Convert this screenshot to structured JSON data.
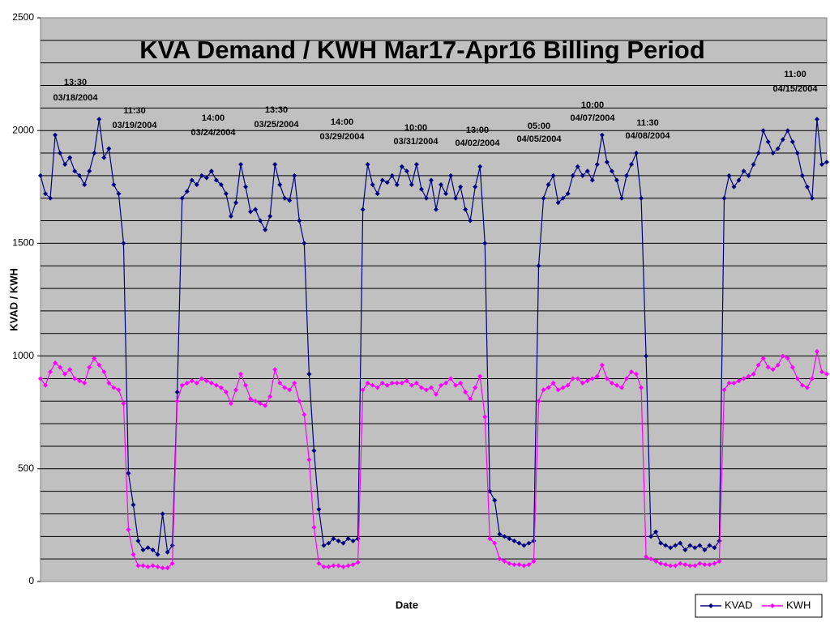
{
  "chart_data": {
    "type": "line",
    "title": "KVA Demand / KWH   Mar17-Apr16 Billing Period",
    "x_label": "Date",
    "y_label": "KVAD / KWH",
    "ylim": [
      0,
      2500
    ],
    "yticks": [
      0,
      500,
      1000,
      1500,
      2000,
      2500
    ],
    "ygrid": [
      100,
      200,
      300,
      400,
      500,
      600,
      700,
      800,
      900,
      1000,
      1100,
      1200,
      1300,
      1400,
      1500,
      1600,
      1700,
      1800,
      1900,
      2000,
      2100,
      2200,
      2300,
      2400
    ],
    "grid": true,
    "legend": "bottom-right",
    "annotations": [
      {
        "time": "13:30",
        "date": "03/18/2004"
      },
      {
        "time": "11:30",
        "date": "03/19/2004"
      },
      {
        "time": "14:00",
        "date": "03/24/2004"
      },
      {
        "time": "13:30",
        "date": "03/25/2004"
      },
      {
        "time": "14:00",
        "date": "03/29/2004"
      },
      {
        "time": "10:00",
        "date": "03/31/2004"
      },
      {
        "time": "13:00",
        "date": "04/02/2004"
      },
      {
        "time": "05:00",
        "date": "04/05/2004"
      },
      {
        "time": "10:00",
        "date": "04/07/2004"
      },
      {
        "time": "11:30",
        "date": "04/08/2004"
      },
      {
        "time": "11:00",
        "date": "04/15/2004"
      }
    ],
    "series": [
      {
        "name": "KVAD",
        "color": "#000080",
        "values": [
          1800,
          1720,
          1700,
          1980,
          1900,
          1850,
          1880,
          1820,
          1800,
          1760,
          1820,
          1900,
          2050,
          1880,
          1920,
          1760,
          1720,
          1500,
          480,
          340,
          180,
          140,
          150,
          140,
          120,
          300,
          130,
          160,
          840,
          1700,
          1730,
          1780,
          1760,
          1800,
          1790,
          1820,
          1780,
          1760,
          1720,
          1620,
          1680,
          1850,
          1750,
          1640,
          1650,
          1600,
          1560,
          1620,
          1850,
          1760,
          1700,
          1690,
          1800,
          1600,
          1500,
          920,
          580,
          320,
          160,
          170,
          190,
          180,
          170,
          190,
          180,
          190,
          1650,
          1850,
          1760,
          1720,
          1780,
          1770,
          1800,
          1760,
          1840,
          1820,
          1760,
          1850,
          1740,
          1700,
          1780,
          1650,
          1760,
          1720,
          1800,
          1700,
          1750,
          1650,
          1600,
          1750,
          1840,
          1500,
          400,
          360,
          210,
          200,
          190,
          180,
          170,
          160,
          170,
          180,
          1400,
          1700,
          1760,
          1800,
          1680,
          1700,
          1720,
          1800,
          1840,
          1800,
          1820,
          1780,
          1850,
          1980,
          1860,
          1820,
          1780,
          1700,
          1800,
          1850,
          1900,
          1700,
          1000,
          200,
          220,
          170,
          160,
          150,
          160,
          170,
          140,
          160,
          150,
          160,
          140,
          160,
          150,
          180,
          1700,
          1800,
          1750,
          1780,
          1820,
          1800,
          1850,
          1900,
          2000,
          1950,
          1900,
          1920,
          1960,
          2000,
          1950,
          1900,
          1800,
          1750,
          1700,
          2050,
          1850,
          1860
        ]
      },
      {
        "name": "KWH",
        "color": "#ff00ff",
        "values": [
          900,
          870,
          930,
          970,
          950,
          920,
          940,
          900,
          890,
          880,
          950,
          990,
          960,
          930,
          880,
          860,
          850,
          790,
          230,
          120,
          70,
          70,
          65,
          70,
          65,
          60,
          60,
          80,
          800,
          870,
          880,
          890,
          880,
          900,
          890,
          880,
          870,
          860,
          840,
          790,
          850,
          920,
          870,
          810,
          800,
          790,
          780,
          820,
          940,
          880,
          860,
          850,
          880,
          800,
          740,
          540,
          240,
          80,
          65,
          65,
          70,
          70,
          65,
          70,
          75,
          85,
          850,
          880,
          870,
          860,
          880,
          870,
          880,
          880,
          880,
          890,
          870,
          880,
          860,
          850,
          860,
          830,
          870,
          880,
          900,
          870,
          880,
          840,
          810,
          860,
          910,
          730,
          190,
          170,
          100,
          90,
          80,
          75,
          75,
          70,
          75,
          90,
          800,
          850,
          860,
          880,
          850,
          860,
          870,
          900,
          900,
          880,
          890,
          900,
          910,
          960,
          900,
          880,
          870,
          860,
          900,
          930,
          920,
          860,
          110,
          100,
          90,
          80,
          75,
          70,
          70,
          80,
          75,
          70,
          70,
          80,
          75,
          75,
          80,
          90,
          850,
          880,
          880,
          890,
          900,
          910,
          920,
          960,
          990,
          950,
          940,
          960,
          1000,
          990,
          950,
          900,
          870,
          860,
          900,
          1020,
          930,
          920
        ]
      }
    ]
  }
}
